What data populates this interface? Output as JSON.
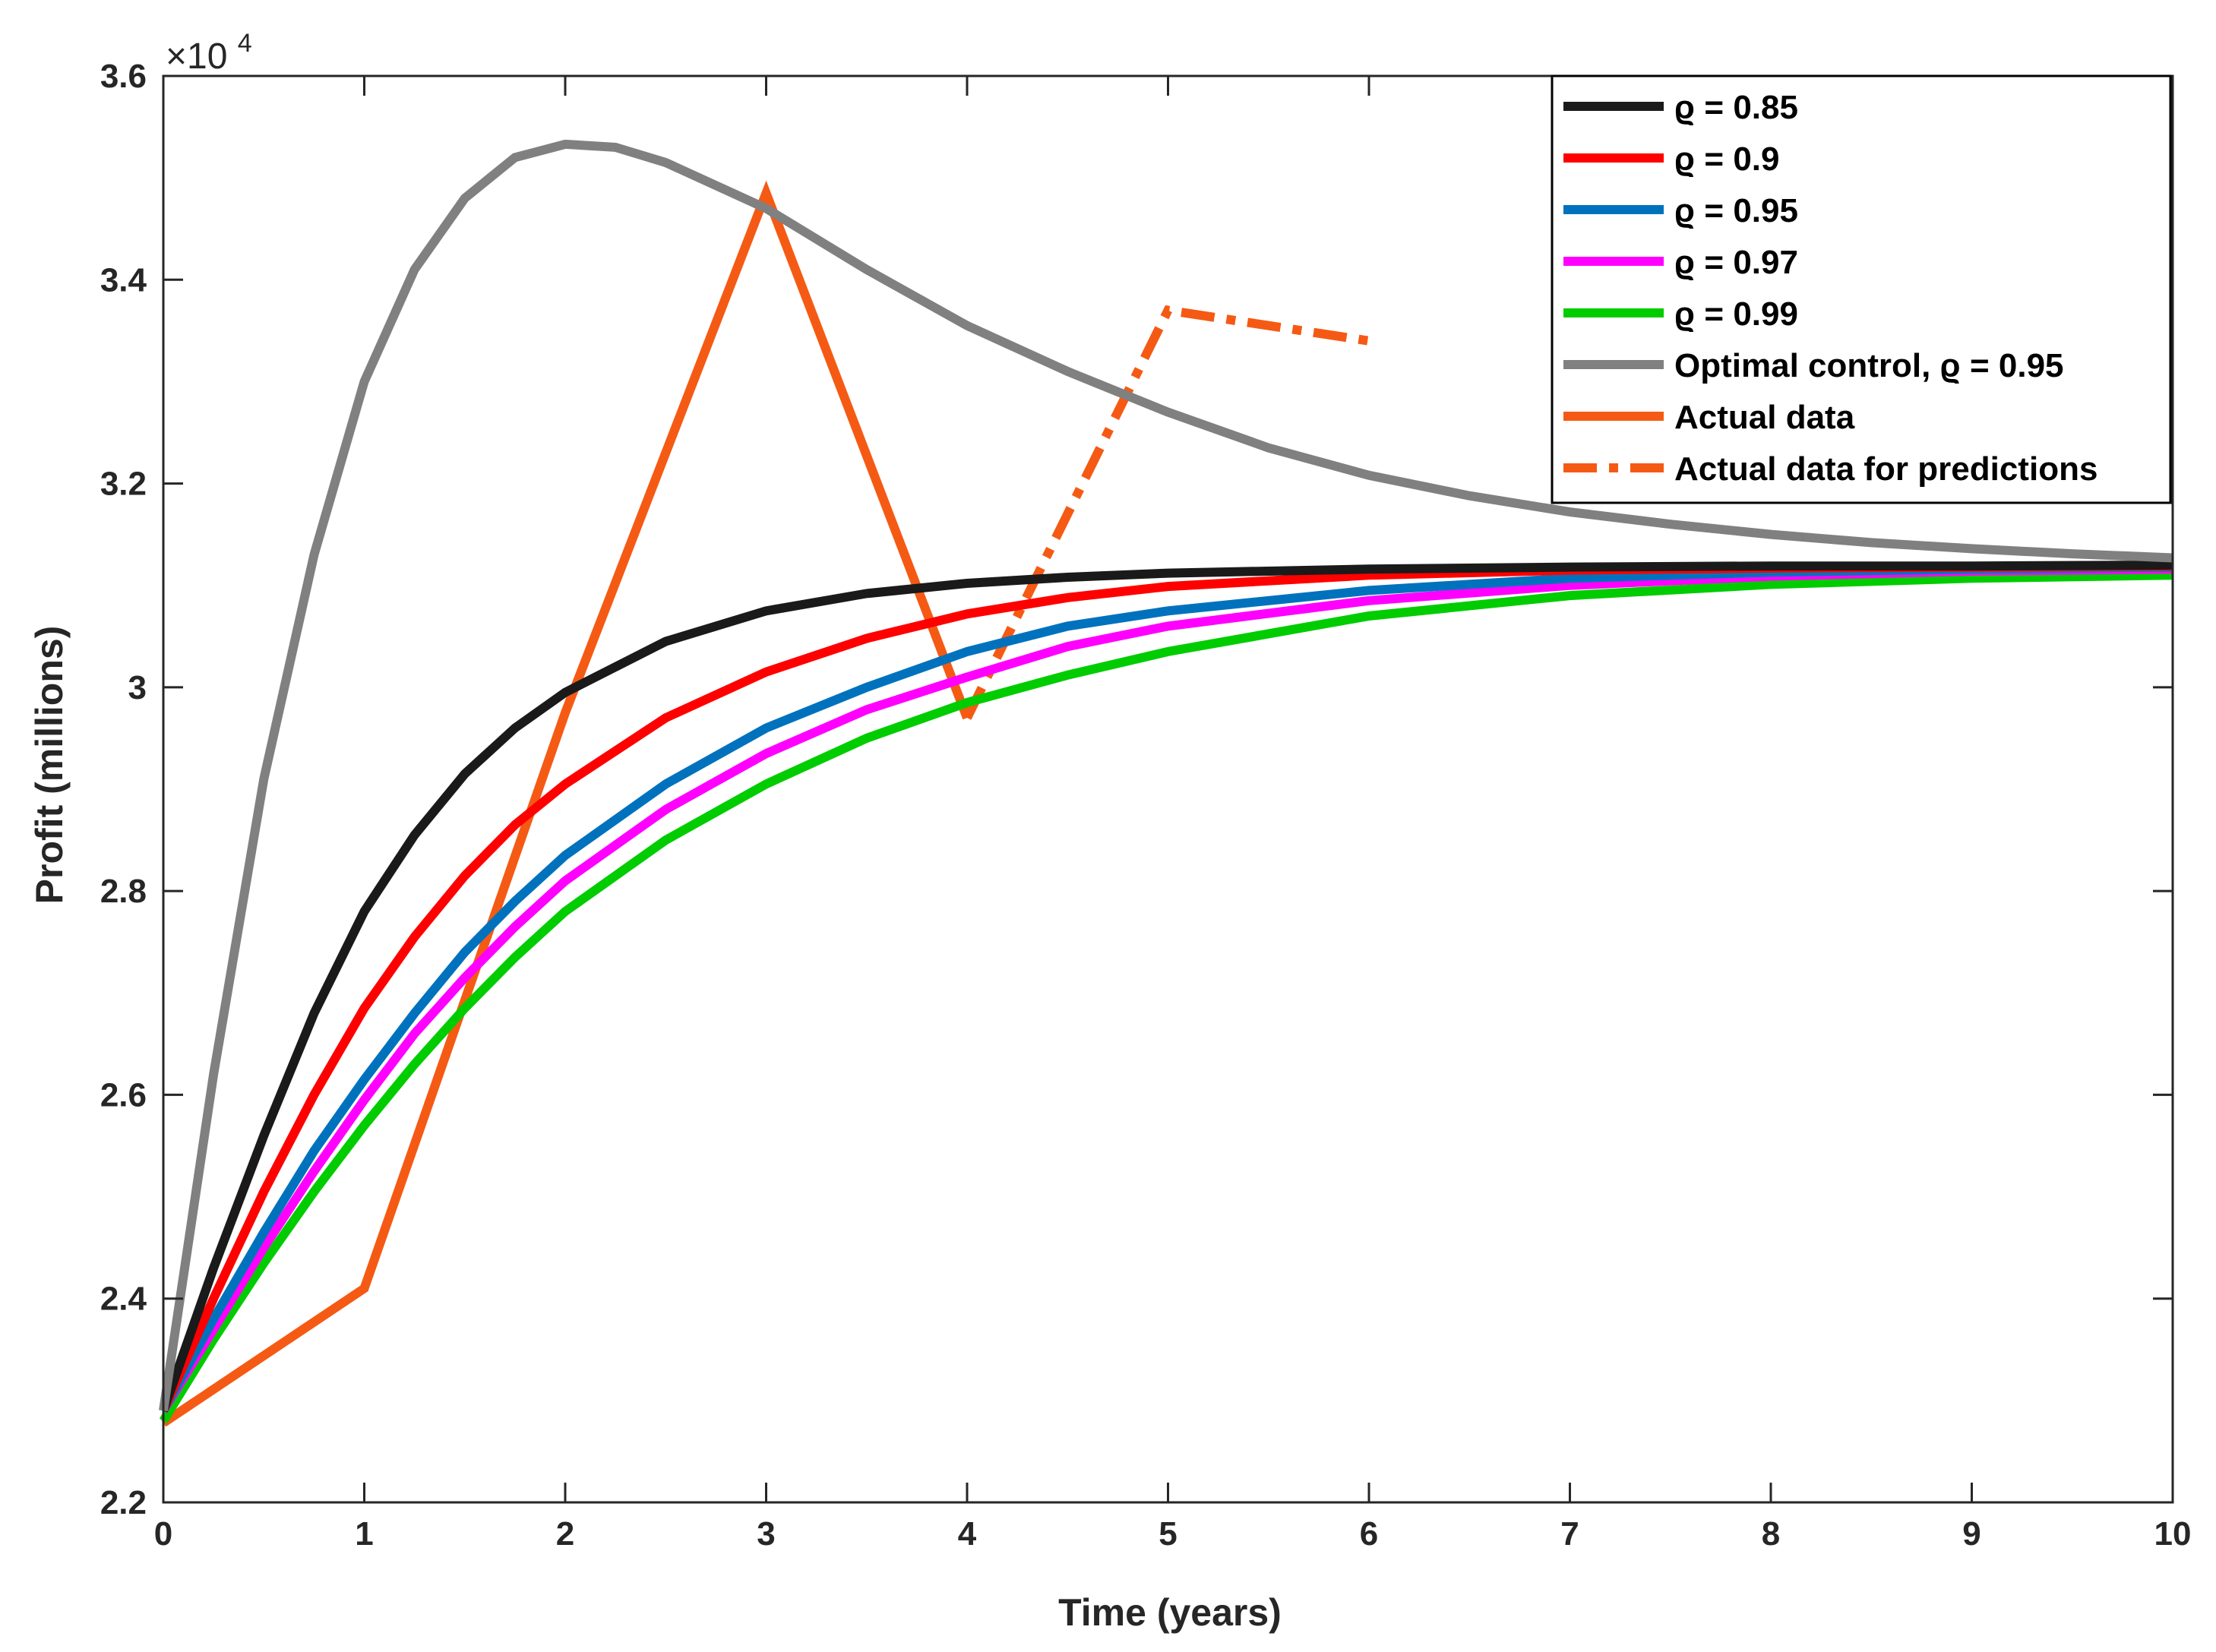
{
  "chart_data": {
    "type": "line",
    "title": "",
    "xlabel": "Time (years)",
    "ylabel": "Profit (millions)",
    "y_multiplier_label": "×10",
    "y_multiplier_exponent": "4",
    "xlim": [
      0,
      10
    ],
    "ylim": [
      2.2,
      3.6
    ],
    "x_ticks": [
      0,
      1,
      2,
      3,
      4,
      5,
      6,
      7,
      8,
      9,
      10
    ],
    "x_tick_labels": [
      "0",
      "1",
      "2",
      "3",
      "4",
      "5",
      "6",
      "7",
      "8",
      "9",
      "10"
    ],
    "y_ticks": [
      2.2,
      2.4,
      2.6,
      2.8,
      3.0,
      3.2,
      3.4,
      3.6
    ],
    "y_tick_labels": [
      "2.2",
      "2.4",
      "2.6",
      "2.8",
      "3",
      "3.2",
      "3.4",
      "3.6"
    ],
    "grid": false,
    "legend_position": "top-right",
    "series": [
      {
        "name": "ϱ = 0.85",
        "color": "#1a1a1a",
        "dash": "solid",
        "x": [
          0,
          0.25,
          0.5,
          0.75,
          1,
          1.25,
          1.5,
          1.75,
          2,
          2.5,
          3,
          3.5,
          4,
          4.5,
          5,
          6,
          7,
          8,
          9,
          10
        ],
        "y": [
          2.29,
          2.43,
          2.56,
          2.68,
          2.78,
          2.855,
          2.915,
          2.96,
          2.995,
          3.045,
          3.075,
          3.092,
          3.102,
          3.108,
          3.112,
          3.116,
          3.118,
          3.119,
          3.119,
          3.12
        ]
      },
      {
        "name": "ϱ = 0.9",
        "color": "#ff0000",
        "dash": "solid",
        "x": [
          0,
          0.25,
          0.5,
          0.75,
          1,
          1.25,
          1.5,
          1.75,
          2,
          2.5,
          3,
          3.5,
          4,
          4.5,
          5,
          6,
          7,
          8,
          9,
          10
        ],
        "y": [
          2.29,
          2.4,
          2.505,
          2.6,
          2.685,
          2.755,
          2.815,
          2.865,
          2.905,
          2.97,
          3.015,
          3.048,
          3.072,
          3.088,
          3.099,
          3.11,
          3.115,
          3.117,
          3.118,
          3.119
        ]
      },
      {
        "name": "ϱ = 0.95",
        "color": "#0072bd",
        "dash": "solid",
        "x": [
          0,
          0.25,
          0.5,
          0.75,
          1,
          1.25,
          1.5,
          1.75,
          2,
          2.5,
          3,
          3.5,
          4,
          4.5,
          5,
          6,
          7,
          8,
          9,
          10
        ],
        "y": [
          2.29,
          2.38,
          2.465,
          2.545,
          2.615,
          2.68,
          2.74,
          2.79,
          2.835,
          2.905,
          2.96,
          3.0,
          3.035,
          3.06,
          3.075,
          3.095,
          3.107,
          3.113,
          3.116,
          3.118
        ]
      },
      {
        "name": "ϱ = 0.97",
        "color": "#ff00ff",
        "dash": "solid",
        "x": [
          0,
          0.25,
          0.5,
          0.75,
          1,
          1.25,
          1.5,
          1.75,
          2,
          2.5,
          3,
          3.5,
          4,
          4.5,
          5,
          6,
          7,
          8,
          9,
          10
        ],
        "y": [
          2.29,
          2.37,
          2.45,
          2.525,
          2.595,
          2.66,
          2.715,
          2.765,
          2.81,
          2.88,
          2.935,
          2.978,
          3.01,
          3.04,
          3.06,
          3.085,
          3.1,
          3.109,
          3.114,
          3.116
        ]
      },
      {
        "name": "ϱ = 0.99",
        "color": "#00cc00",
        "dash": "solid",
        "x": [
          0,
          0.25,
          0.5,
          0.75,
          1,
          1.25,
          1.5,
          1.75,
          2,
          2.5,
          3,
          3.5,
          4,
          4.5,
          5,
          6,
          7,
          8,
          9,
          10
        ],
        "y": [
          2.28,
          2.36,
          2.435,
          2.505,
          2.57,
          2.63,
          2.685,
          2.735,
          2.78,
          2.85,
          2.905,
          2.95,
          2.985,
          3.012,
          3.035,
          3.07,
          3.09,
          3.101,
          3.107,
          3.11
        ]
      },
      {
        "name": "Optimal control, ϱ = 0.95",
        "color": "#808080",
        "dash": "solid",
        "x": [
          0,
          0.25,
          0.5,
          0.75,
          1,
          1.25,
          1.5,
          1.75,
          2,
          2.25,
          2.5,
          3,
          3.5,
          4,
          4.5,
          5,
          5.5,
          6,
          6.5,
          7,
          7.5,
          8,
          8.5,
          9,
          9.5,
          10
        ],
        "y": [
          2.29,
          2.62,
          2.91,
          3.13,
          3.3,
          3.41,
          3.48,
          3.52,
          3.533,
          3.53,
          3.515,
          3.47,
          3.41,
          3.355,
          3.31,
          3.27,
          3.235,
          3.208,
          3.188,
          3.172,
          3.16,
          3.15,
          3.142,
          3.136,
          3.131,
          3.127
        ]
      },
      {
        "name": "Actual data",
        "color": "#f55a14",
        "dash": "solid",
        "x": [
          0,
          1,
          2,
          3,
          4
        ],
        "y": [
          2.278,
          2.41,
          2.975,
          3.485,
          2.97
        ]
      },
      {
        "name": "Actual data for predictions",
        "color": "#f55a14",
        "dash": "dashed",
        "x": [
          4,
          5,
          6
        ],
        "y": [
          2.97,
          3.37,
          3.34
        ]
      }
    ]
  }
}
